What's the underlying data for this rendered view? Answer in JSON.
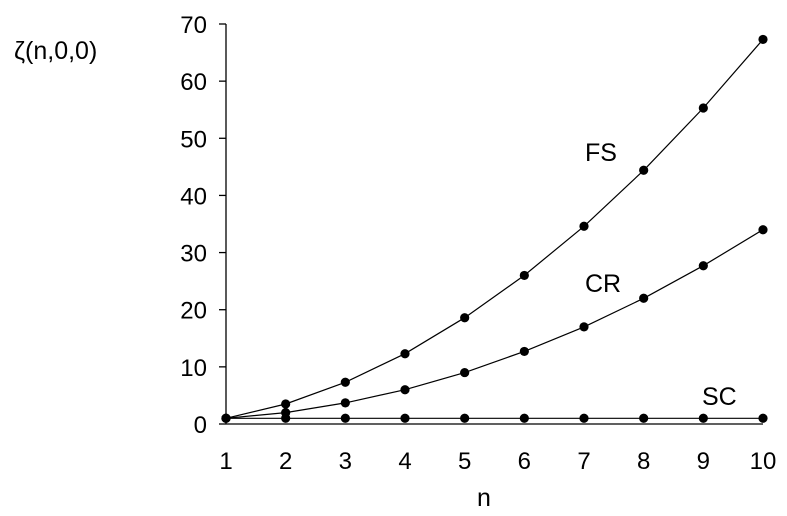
{
  "chart_data": {
    "type": "line",
    "ylabel": "ζ(n,0,0)",
    "xlabel": "n",
    "x": [
      1,
      2,
      3,
      4,
      5,
      6,
      7,
      8,
      9,
      10
    ],
    "xlim": [
      1,
      10
    ],
    "ylim": [
      0,
      70
    ],
    "yticks": [
      0,
      10,
      20,
      30,
      40,
      50,
      60,
      70
    ],
    "xticks": [
      1,
      2,
      3,
      4,
      5,
      6,
      7,
      8,
      9,
      10
    ],
    "grid": false,
    "series": [
      {
        "name": "FS",
        "values": [
          1.0,
          3.5,
          7.3,
          12.3,
          18.6,
          26.0,
          34.6,
          44.4,
          55.3,
          67.3
        ]
      },
      {
        "name": "CR",
        "values": [
          1.0,
          2.0,
          3.7,
          6.0,
          9.0,
          12.7,
          17.0,
          22.0,
          27.7,
          34.0
        ]
      },
      {
        "name": "SC",
        "values": [
          1.0,
          1.0,
          1.0,
          1.0,
          1.0,
          1.0,
          1.0,
          1.0,
          1.0,
          1.0
        ]
      }
    ]
  }
}
